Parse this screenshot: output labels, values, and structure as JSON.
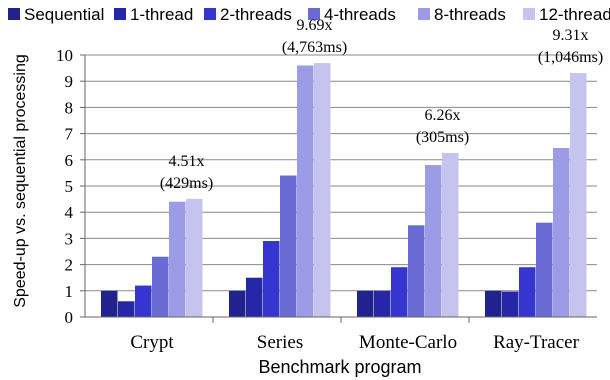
{
  "chart_data": {
    "type": "bar",
    "xlabel": "Benchmark program",
    "ylabel": "Speed-up vs. sequential processing",
    "ylim": [
      0,
      10
    ],
    "yticks": [
      "0",
      "1",
      "2",
      "3",
      "4",
      "5",
      "6",
      "7",
      "8",
      "9",
      "10"
    ],
    "grid": "horizontal",
    "legend_position": "top",
    "categories": [
      "Crypt",
      "Series",
      "Monte-Carlo",
      "Ray-Tracer"
    ],
    "series": [
      {
        "name": "Sequential",
        "color": "#22228c",
        "values": [
          1.0,
          1.0,
          1.0,
          1.0
        ]
      },
      {
        "name": "1-thread",
        "color": "#2626a8",
        "values": [
          0.6,
          1.5,
          1.0,
          0.97
        ]
      },
      {
        "name": "2-threads",
        "color": "#3535d0",
        "values": [
          1.2,
          2.9,
          1.9,
          1.9
        ]
      },
      {
        "name": "4-threads",
        "color": "#6a6ad4",
        "values": [
          2.3,
          5.4,
          3.5,
          3.6
        ]
      },
      {
        "name": "8-threads",
        "color": "#9c9ce6",
        "values": [
          4.4,
          9.6,
          5.8,
          6.45
        ]
      },
      {
        "name": "12-threads",
        "color": "#c4c4ef",
        "values": [
          4.51,
          9.69,
          6.26,
          9.31
        ]
      }
    ],
    "annotations": [
      {
        "category": "Crypt",
        "line1": "4.51x",
        "line2": "(429ms)"
      },
      {
        "category": "Series",
        "line1": "9.69x",
        "line2": "(4,763ms)"
      },
      {
        "category": "Monte-Carlo",
        "line1": "6.26x",
        "line2": "(305ms)"
      },
      {
        "category": "Ray-Tracer",
        "line1": "9.31x",
        "line2": "(1,046ms)"
      }
    ]
  }
}
